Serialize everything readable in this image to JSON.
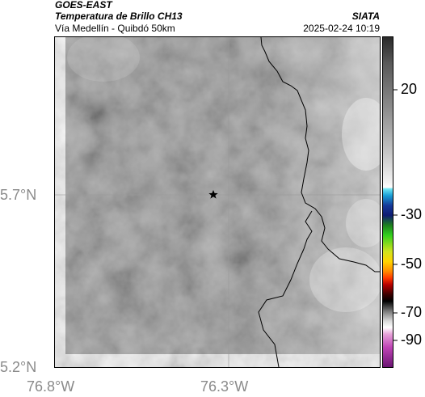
{
  "header": {
    "satellite": "GOES-EAST",
    "product": "Temperatura de Brillo CH13",
    "location": "Vía Medellín - Quibdó 50km",
    "organization": "SIATA",
    "timestamp": "2025-02-24 10:19"
  },
  "map": {
    "latitude_labels": [
      "5.7°N",
      "5.2°N"
    ],
    "longitude_labels": [
      "76.8°W",
      "76.3°W"
    ],
    "marker_icon": "star-icon",
    "gridlines": true,
    "layers": [
      "brightness-temperature-grayscale",
      "department-boundary"
    ]
  },
  "colorbar": {
    "tick_labels": [
      "20",
      "-30",
      "-50",
      "-70",
      "-90"
    ],
    "tick_values": [
      20,
      -30,
      -50,
      -70,
      -90
    ],
    "colors": {
      "warm_gray": "#8e8e8e",
      "cyan": "#1a9fd6",
      "navy": "#0e1a72",
      "green": "#31cf1d",
      "yellow": "#ffd400",
      "red": "#ff3a00",
      "black": "#000000",
      "magenta": "#c044b6"
    }
  }
}
